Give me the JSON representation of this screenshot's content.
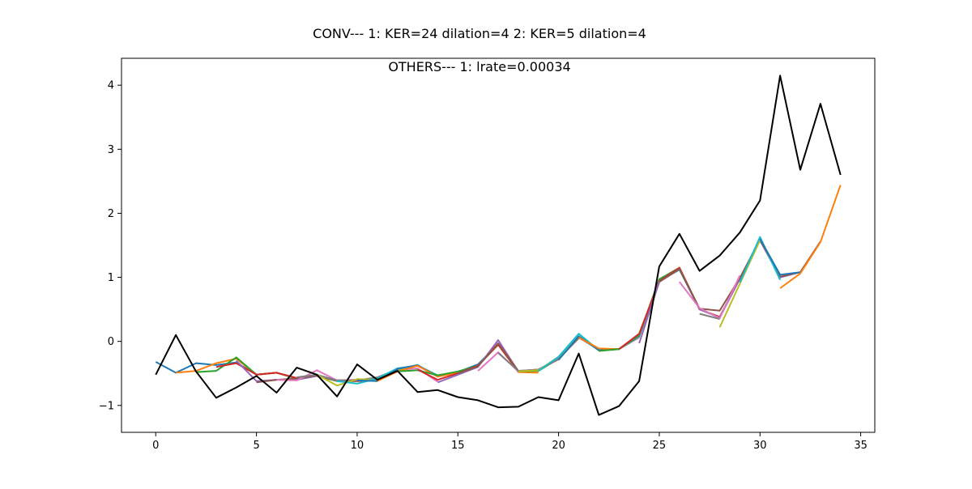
{
  "chart_data": {
    "type": "line",
    "title": "CONV--- 1: KER=24   dilation=4   2: KER=5   dilation=4",
    "subtitle": "OTHERS--- 1: lrate=0.00034",
    "xlabel": "",
    "ylabel": "",
    "xlim": [
      -1.7,
      35.7
    ],
    "ylim": [
      -1.42,
      4.42
    ],
    "xticks": [
      0,
      5,
      10,
      15,
      20,
      25,
      30,
      35
    ],
    "yticks": [
      -1,
      0,
      1,
      2,
      3,
      4
    ],
    "grid": false,
    "legend": "none",
    "actual": {
      "color": "#000000",
      "x": [
        0,
        1,
        2,
        3,
        4,
        5,
        6,
        7,
        8,
        9,
        10,
        11,
        12,
        13,
        14,
        15,
        16,
        17,
        18,
        19,
        20,
        21,
        22,
        23,
        24,
        25,
        26,
        27,
        28,
        29,
        30,
        31,
        32,
        33,
        34
      ],
      "y": [
        -0.52,
        0.1,
        -0.47,
        -0.88,
        -0.72,
        -0.54,
        -0.8,
        -0.41,
        -0.52,
        -0.86,
        -0.36,
        -0.6,
        -0.46,
        -0.79,
        -0.76,
        -0.87,
        -0.92,
        -1.03,
        -1.02,
        -0.87,
        -0.92,
        -0.19,
        -1.15,
        -1.01,
        -0.62,
        1.17,
        1.68,
        1.1,
        1.34,
        1.7,
        2.2,
        4.15,
        2.68,
        3.71,
        2.6
      ]
    },
    "series": [
      {
        "color": "#1f77b4",
        "x": [
          0,
          1,
          2,
          3,
          4,
          5,
          6,
          7,
          8
        ],
        "y": [
          -0.32,
          -0.49,
          -0.34,
          -0.37,
          -0.33,
          -0.52,
          -0.49,
          -0.58,
          -0.54
        ]
      },
      {
        "color": "#ff7f0e",
        "x": [
          1,
          2,
          3,
          4,
          5,
          6,
          7,
          8,
          9
        ],
        "y": [
          -0.49,
          -0.46,
          -0.34,
          -0.27,
          -0.52,
          -0.49,
          -0.58,
          -0.54,
          -0.62
        ]
      },
      {
        "color": "#2ca02c",
        "x": [
          2,
          3,
          4,
          5,
          6,
          7,
          8,
          9,
          10
        ],
        "y": [
          -0.48,
          -0.46,
          -0.25,
          -0.52,
          -0.49,
          -0.58,
          -0.54,
          -0.62,
          -0.62
        ]
      },
      {
        "color": "#d62728",
        "x": [
          3,
          4,
          5,
          6,
          7,
          8,
          9,
          10,
          11
        ],
        "y": [
          -0.4,
          -0.34,
          -0.52,
          -0.49,
          -0.57,
          -0.54,
          -0.61,
          -0.62,
          -0.61
        ]
      },
      {
        "color": "#9467bd",
        "x": [
          4,
          5,
          6,
          7,
          8,
          9,
          10,
          11,
          12
        ],
        "y": [
          -0.3,
          -0.62,
          -0.6,
          -0.6,
          -0.54,
          -0.61,
          -0.61,
          -0.6,
          -0.46
        ]
      },
      {
        "color": "#8c564b",
        "x": [
          5,
          6,
          7,
          8,
          9,
          10,
          11,
          12,
          13
        ],
        "y": [
          -0.64,
          -0.6,
          -0.58,
          -0.53,
          -0.61,
          -0.6,
          -0.6,
          -0.47,
          -0.37
        ]
      },
      {
        "color": "#e377c2",
        "x": [
          6,
          7,
          8,
          9,
          10,
          11,
          12,
          13,
          14
        ],
        "y": [
          -0.6,
          -0.61,
          -0.45,
          -0.61,
          -0.6,
          -0.58,
          -0.45,
          -0.42,
          -0.63
        ]
      },
      {
        "color": "#7f7f7f",
        "x": [
          7,
          8,
          9,
          10,
          11,
          12,
          13,
          14,
          15
        ],
        "y": [
          -0.56,
          -0.52,
          -0.61,
          -0.61,
          -0.56,
          -0.44,
          -0.38,
          -0.53,
          -0.48
        ]
      },
      {
        "color": "#bcbd22",
        "x": [
          8,
          9,
          10,
          11,
          12,
          13,
          14,
          15,
          16
        ],
        "y": [
          -0.52,
          -0.69,
          -0.59,
          -0.6,
          -0.46,
          -0.38,
          -0.53,
          -0.48,
          -0.38
        ]
      },
      {
        "color": "#17becf",
        "x": [
          9,
          10,
          11,
          12,
          13,
          14,
          15,
          16,
          17
        ],
        "y": [
          -0.62,
          -0.66,
          -0.58,
          -0.42,
          -0.38,
          -0.53,
          -0.48,
          -0.37,
          -0.05
        ]
      },
      {
        "color": "#1f77b4",
        "x": [
          10,
          11,
          12,
          13,
          14,
          15,
          16,
          17,
          18
        ],
        "y": [
          -0.61,
          -0.62,
          -0.43,
          -0.37,
          -0.55,
          -0.48,
          -0.36,
          -0.05,
          -0.46
        ]
      },
      {
        "color": "#ff7f0e",
        "x": [
          11,
          12,
          13,
          14,
          15,
          16,
          17,
          18,
          19
        ],
        "y": [
          -0.62,
          -0.47,
          -0.38,
          -0.55,
          -0.49,
          -0.38,
          -0.05,
          -0.48,
          -0.49
        ]
      },
      {
        "color": "#2ca02c",
        "x": [
          12,
          13,
          14,
          15,
          16,
          17,
          18,
          19,
          20
        ],
        "y": [
          -0.47,
          -0.45,
          -0.53,
          -0.47,
          -0.38,
          -0.05,
          -0.47,
          -0.46,
          -0.27
        ]
      },
      {
        "color": "#d62728",
        "x": [
          13,
          14,
          15,
          16,
          17,
          18,
          19,
          20,
          21
        ],
        "y": [
          -0.44,
          -0.6,
          -0.5,
          -0.38,
          -0.05,
          -0.47,
          -0.44,
          -0.27,
          0.05
        ]
      },
      {
        "color": "#9467bd",
        "x": [
          14,
          15,
          16,
          17,
          18,
          19,
          20,
          21,
          22
        ],
        "y": [
          -0.64,
          -0.52,
          -0.4,
          0.02,
          -0.47,
          -0.44,
          -0.27,
          0.06,
          -0.12
        ]
      },
      {
        "color": "#8c564b",
        "x": [
          15,
          16,
          17,
          18,
          19,
          20,
          21,
          22,
          23
        ],
        "y": [
          -0.5,
          -0.39,
          -0.03,
          -0.46,
          -0.44,
          -0.28,
          0.06,
          -0.12,
          -0.12
        ]
      },
      {
        "color": "#e377c2",
        "x": [
          16,
          17,
          18,
          19,
          20,
          21,
          22,
          23,
          24
        ],
        "y": [
          -0.46,
          -0.17,
          -0.47,
          -0.44,
          -0.27,
          0.07,
          -0.12,
          -0.12,
          0.06
        ]
      },
      {
        "color": "#7f7f7f",
        "x": [
          17,
          18,
          19,
          20,
          21,
          22,
          23,
          24,
          25
        ],
        "y": [
          -0.18,
          -0.46,
          -0.44,
          -0.27,
          0.06,
          -0.13,
          -0.12,
          0.07,
          0.92
        ]
      },
      {
        "color": "#bcbd22",
        "x": [
          18,
          19,
          20,
          21,
          22,
          23,
          24,
          25,
          26
        ],
        "y": [
          -0.47,
          -0.45,
          -0.24,
          0.08,
          -0.14,
          -0.12,
          0.08,
          0.94,
          1.12
        ]
      },
      {
        "color": "#17becf",
        "x": [
          19,
          20,
          21,
          22,
          23,
          24,
          25,
          26,
          27
        ],
        "y": [
          -0.46,
          -0.24,
          0.12,
          -0.14,
          -0.12,
          0.08,
          0.94,
          1.12,
          0.5
        ]
      },
      {
        "color": "#1f77b4",
        "x": [
          20,
          21,
          22,
          23,
          24,
          25,
          26,
          27,
          28
        ],
        "y": [
          -0.29,
          0.08,
          -0.14,
          -0.12,
          0.09,
          0.95,
          1.14,
          0.5,
          0.38
        ]
      },
      {
        "color": "#ff7f0e",
        "x": [
          21,
          22,
          23,
          24,
          25,
          26,
          27,
          28,
          29
        ],
        "y": [
          0.06,
          -0.11,
          -0.12,
          0.1,
          0.96,
          1.15,
          0.5,
          0.38,
          0.98
        ]
      },
      {
        "color": "#2ca02c",
        "x": [
          22,
          23,
          24,
          25,
          26,
          27,
          28,
          29,
          30
        ],
        "y": [
          -0.15,
          -0.12,
          0.1,
          0.97,
          1.15,
          0.5,
          0.38,
          0.98,
          1.6
        ]
      },
      {
        "color": "#d62728",
        "x": [
          23,
          24,
          25,
          26,
          27,
          28,
          29,
          30,
          31
        ],
        "y": [
          -0.12,
          0.12,
          0.94,
          1.15,
          0.5,
          0.38,
          0.98,
          1.58,
          1.0
        ]
      },
      {
        "color": "#9467bd",
        "x": [
          24,
          25,
          26,
          27,
          28,
          29,
          30,
          31,
          32
        ],
        "y": [
          -0.03,
          0.93,
          1.13,
          0.5,
          0.37,
          0.98,
          1.58,
          1.0,
          1.08
        ]
      },
      {
        "color": "#8c564b",
        "x": [
          25,
          26,
          27,
          28,
          29,
          30,
          31,
          32,
          33
        ],
        "y": [
          0.93,
          1.13,
          0.51,
          0.48,
          0.99,
          1.58,
          1.01,
          1.08,
          1.56
        ]
      },
      {
        "color": "#e377c2",
        "x": [
          26,
          27,
          28,
          29
        ],
        "y": [
          0.93,
          0.52,
          0.36,
          1.03
        ]
      },
      {
        "color": "#7f7f7f",
        "x": [
          27,
          28
        ],
        "y": [
          0.43,
          0.35
        ]
      },
      {
        "color": "#bcbd22",
        "x": [
          28,
          29,
          30
        ],
        "y": [
          0.22,
          0.9,
          1.58
        ]
      },
      {
        "color": "#17becf",
        "x": [
          29,
          30,
          31
        ],
        "y": [
          0.92,
          1.63,
          0.96
        ]
      },
      {
        "color": "#1f77b4",
        "x": [
          30,
          31,
          32
        ],
        "y": [
          1.6,
          1.04,
          1.08
        ]
      },
      {
        "color": "#ff7f0e",
        "x": [
          31,
          32,
          33,
          34
        ],
        "y": [
          0.83,
          1.06,
          1.55,
          2.44
        ]
      }
    ]
  }
}
